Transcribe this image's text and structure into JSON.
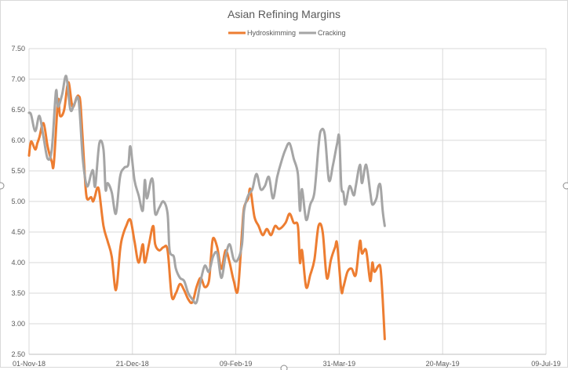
{
  "chart_data": {
    "type": "line",
    "title": "Asian Refining Margins",
    "xlabel": "",
    "ylabel": "",
    "x_ticks": [
      "01-Nov-18",
      "21-Dec-18",
      "09-Feb-19",
      "31-Mar-19",
      "20-May-19",
      "09-Jul-19"
    ],
    "xlim": [
      "2018-11-01",
      "2019-07-09"
    ],
    "ylim": [
      2.5,
      7.5
    ],
    "y_ticks": [
      "2.50",
      "3.00",
      "3.50",
      "4.00",
      "4.50",
      "5.00",
      "5.50",
      "6.00",
      "6.50",
      "7.00",
      "7.50"
    ],
    "grid": true,
    "legend_position": "top",
    "series": [
      {
        "name": "Hydroskimming",
        "color": "#ed7d31",
        "points": [
          [
            "2018-11-01",
            5.75
          ],
          [
            "2018-11-02",
            5.98
          ],
          [
            "2018-11-04",
            5.85
          ],
          [
            "2018-11-05",
            5.95
          ],
          [
            "2018-11-06",
            6.05
          ],
          [
            "2018-11-08",
            6.28
          ],
          [
            "2018-11-10",
            5.9
          ],
          [
            "2018-11-12",
            5.65
          ],
          [
            "2018-11-13",
            5.62
          ],
          [
            "2018-11-15",
            6.65
          ],
          [
            "2018-11-16",
            6.4
          ],
          [
            "2018-11-18",
            6.5
          ],
          [
            "2018-11-20",
            6.95
          ],
          [
            "2018-11-22",
            6.55
          ],
          [
            "2018-11-24",
            6.7
          ],
          [
            "2018-11-25",
            6.72
          ],
          [
            "2018-11-26",
            6.55
          ],
          [
            "2018-11-28",
            5.4
          ],
          [
            "2018-11-29",
            5.05
          ],
          [
            "2018-12-01",
            5.07
          ],
          [
            "2018-12-02",
            5.0
          ],
          [
            "2018-12-03",
            5.1
          ],
          [
            "2018-12-04",
            5.22
          ],
          [
            "2018-12-05",
            5.15
          ],
          [
            "2018-12-07",
            4.6
          ],
          [
            "2018-12-09",
            4.35
          ],
          [
            "2018-12-11",
            4.1
          ],
          [
            "2018-12-13",
            3.55
          ],
          [
            "2018-12-15",
            4.2
          ],
          [
            "2018-12-16",
            4.4
          ],
          [
            "2018-12-18",
            4.6
          ],
          [
            "2018-12-20",
            4.7
          ],
          [
            "2018-12-22",
            4.35
          ],
          [
            "2018-12-24",
            4.0
          ],
          [
            "2018-12-26",
            4.3
          ],
          [
            "2018-12-27",
            4.0
          ],
          [
            "2018-12-29",
            4.3
          ],
          [
            "2018-12-31",
            4.6
          ],
          [
            "2019-01-01",
            4.3
          ],
          [
            "2019-01-03",
            4.2
          ],
          [
            "2019-01-05",
            4.25
          ],
          [
            "2019-01-07",
            4.2
          ],
          [
            "2019-01-09",
            3.45
          ],
          [
            "2019-01-11",
            3.5
          ],
          [
            "2019-01-13",
            3.65
          ],
          [
            "2019-01-15",
            3.55
          ],
          [
            "2019-01-17",
            3.4
          ],
          [
            "2019-01-19",
            3.35
          ],
          [
            "2019-01-21",
            3.6
          ],
          [
            "2019-01-23",
            3.75
          ],
          [
            "2019-01-25",
            3.6
          ],
          [
            "2019-01-27",
            3.7
          ],
          [
            "2019-01-28",
            4.1
          ],
          [
            "2019-01-29",
            4.4
          ],
          [
            "2019-01-31",
            4.25
          ],
          [
            "2019-02-02",
            3.9
          ],
          [
            "2019-02-04",
            4.2
          ],
          [
            "2019-02-06",
            4.0
          ],
          [
            "2019-02-08",
            3.7
          ],
          [
            "2019-02-10",
            3.55
          ],
          [
            "2019-02-12",
            4.5
          ],
          [
            "2019-02-13",
            4.9
          ],
          [
            "2019-02-15",
            5.05
          ],
          [
            "2019-02-16",
            5.2
          ],
          [
            "2019-02-18",
            4.75
          ],
          [
            "2019-02-20",
            4.6
          ],
          [
            "2019-02-22",
            4.45
          ],
          [
            "2019-02-24",
            4.55
          ],
          [
            "2019-02-26",
            4.45
          ],
          [
            "2019-02-28",
            4.6
          ],
          [
            "2019-03-02",
            4.55
          ],
          [
            "2019-03-05",
            4.65
          ],
          [
            "2019-03-07",
            4.8
          ],
          [
            "2019-03-09",
            4.65
          ],
          [
            "2019-03-11",
            4.6
          ],
          [
            "2019-03-12",
            4.0
          ],
          [
            "2019-03-13",
            4.2
          ],
          [
            "2019-03-15",
            3.6
          ],
          [
            "2019-03-17",
            3.8
          ],
          [
            "2019-03-19",
            4.05
          ],
          [
            "2019-03-21",
            4.6
          ],
          [
            "2019-03-23",
            4.5
          ],
          [
            "2019-03-25",
            3.75
          ],
          [
            "2019-03-27",
            4.05
          ],
          [
            "2019-03-29",
            4.25
          ],
          [
            "2019-03-30",
            4.3
          ],
          [
            "2019-04-01",
            3.55
          ],
          [
            "2019-04-02",
            3.6
          ],
          [
            "2019-04-04",
            3.85
          ],
          [
            "2019-04-06",
            3.9
          ],
          [
            "2019-04-08",
            3.8
          ],
          [
            "2019-04-10",
            4.35
          ],
          [
            "2019-04-11",
            4.15
          ],
          [
            "2019-04-13",
            4.2
          ],
          [
            "2019-04-15",
            3.7
          ],
          [
            "2019-04-16",
            4.0
          ],
          [
            "2019-04-17",
            3.85
          ],
          [
            "2019-04-19",
            3.95
          ],
          [
            "2019-04-20",
            3.9
          ],
          [
            "2019-04-21",
            3.4
          ],
          [
            "2019-04-22",
            2.75
          ]
        ]
      },
      {
        "name": "Cracking",
        "color": "#a5a5a5",
        "points": [
          [
            "2018-11-01",
            6.45
          ],
          [
            "2018-11-02",
            6.42
          ],
          [
            "2018-11-04",
            6.15
          ],
          [
            "2018-11-06",
            6.4
          ],
          [
            "2018-11-08",
            6.05
          ],
          [
            "2018-11-10",
            5.7
          ],
          [
            "2018-11-12",
            5.85
          ],
          [
            "2018-11-14",
            6.8
          ],
          [
            "2018-11-15",
            6.55
          ],
          [
            "2018-11-17",
            6.75
          ],
          [
            "2018-11-19",
            7.05
          ],
          [
            "2018-11-21",
            6.5
          ],
          [
            "2018-11-23",
            6.6
          ],
          [
            "2018-11-25",
            6.65
          ],
          [
            "2018-11-27",
            5.7
          ],
          [
            "2018-11-29",
            5.25
          ],
          [
            "2018-12-01",
            5.45
          ],
          [
            "2018-12-02",
            5.5
          ],
          [
            "2018-12-03",
            5.25
          ],
          [
            "2018-12-05",
            5.95
          ],
          [
            "2018-12-07",
            5.85
          ],
          [
            "2018-12-08",
            5.2
          ],
          [
            "2018-12-09",
            5.3
          ],
          [
            "2018-12-11",
            5.15
          ],
          [
            "2018-12-13",
            4.8
          ],
          [
            "2018-12-15",
            5.4
          ],
          [
            "2018-12-17",
            5.55
          ],
          [
            "2018-12-19",
            5.6
          ],
          [
            "2018-12-20",
            5.9
          ],
          [
            "2018-12-22",
            5.35
          ],
          [
            "2018-12-24",
            5.1
          ],
          [
            "2018-12-26",
            4.85
          ],
          [
            "2018-12-27",
            5.35
          ],
          [
            "2018-12-28",
            5.05
          ],
          [
            "2018-12-30",
            5.35
          ],
          [
            "2018-12-31",
            5.3
          ],
          [
            "2019-01-01",
            4.8
          ],
          [
            "2019-01-03",
            4.9
          ],
          [
            "2019-01-05",
            5.0
          ],
          [
            "2019-01-07",
            4.8
          ],
          [
            "2019-01-08",
            4.2
          ],
          [
            "2019-01-10",
            4.1
          ],
          [
            "2019-01-11",
            3.9
          ],
          [
            "2019-01-13",
            3.75
          ],
          [
            "2019-01-15",
            3.7
          ],
          [
            "2019-01-17",
            3.5
          ],
          [
            "2019-01-19",
            3.4
          ],
          [
            "2019-01-21",
            3.35
          ],
          [
            "2019-01-23",
            3.7
          ],
          [
            "2019-01-25",
            3.95
          ],
          [
            "2019-01-27",
            3.85
          ],
          [
            "2019-01-29",
            4.1
          ],
          [
            "2019-01-31",
            4.15
          ],
          [
            "2019-02-02",
            3.75
          ],
          [
            "2019-02-04",
            4.1
          ],
          [
            "2019-02-06",
            4.3
          ],
          [
            "2019-02-08",
            4.05
          ],
          [
            "2019-02-10",
            4.05
          ],
          [
            "2019-02-12",
            4.3
          ],
          [
            "2019-02-13",
            4.85
          ],
          [
            "2019-02-15",
            5.1
          ],
          [
            "2019-02-17",
            5.2
          ],
          [
            "2019-02-19",
            5.45
          ],
          [
            "2019-02-21",
            5.2
          ],
          [
            "2019-02-23",
            5.25
          ],
          [
            "2019-02-25",
            5.4
          ],
          [
            "2019-02-27",
            5.05
          ],
          [
            "2019-03-01",
            5.4
          ],
          [
            "2019-03-03",
            5.65
          ],
          [
            "2019-03-05",
            5.85
          ],
          [
            "2019-03-07",
            5.95
          ],
          [
            "2019-03-09",
            5.7
          ],
          [
            "2019-03-11",
            5.45
          ],
          [
            "2019-03-12",
            4.85
          ],
          [
            "2019-03-13",
            5.2
          ],
          [
            "2019-03-15",
            4.7
          ],
          [
            "2019-03-17",
            4.95
          ],
          [
            "2019-03-19",
            5.15
          ],
          [
            "2019-03-21",
            5.9
          ],
          [
            "2019-03-22",
            6.15
          ],
          [
            "2019-03-24",
            6.1
          ],
          [
            "2019-03-26",
            5.35
          ],
          [
            "2019-03-28",
            5.6
          ],
          [
            "2019-03-30",
            5.95
          ],
          [
            "2019-03-31",
            6.05
          ],
          [
            "2019-04-01",
            5.25
          ],
          [
            "2019-04-02",
            5.15
          ],
          [
            "2019-04-03",
            4.95
          ],
          [
            "2019-04-05",
            5.25
          ],
          [
            "2019-04-07",
            5.1
          ],
          [
            "2019-04-08",
            5.25
          ],
          [
            "2019-04-10",
            5.6
          ],
          [
            "2019-04-11",
            5.3
          ],
          [
            "2019-04-13",
            5.6
          ],
          [
            "2019-04-15",
            5.15
          ],
          [
            "2019-04-16",
            4.95
          ],
          [
            "2019-04-18",
            5.05
          ],
          [
            "2019-04-19",
            5.25
          ],
          [
            "2019-04-20",
            5.25
          ],
          [
            "2019-04-21",
            4.85
          ],
          [
            "2019-04-22",
            4.6
          ]
        ]
      }
    ]
  }
}
